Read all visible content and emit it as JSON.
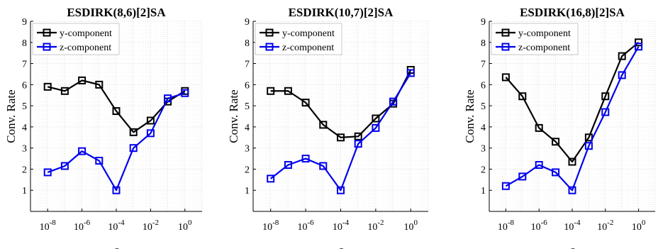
{
  "colors": {
    "y": "#000000",
    "z": "#0000ee",
    "grid": "#d9d9d9",
    "minor_grid": "#eeeeee"
  },
  "chart_data": [
    {
      "type": "line",
      "title": "ESDIRK(8,6)[2]SA",
      "xlabel": "ε",
      "ylabel": "Conv. Rate",
      "xscale": "log",
      "xlim": [
        1e-09,
        10.0
      ],
      "ylim": [
        0,
        9
      ],
      "xticks": [
        1e-08,
        1e-06,
        0.0001,
        0.01,
        1.0
      ],
      "xticklabels": [
        {
          "base": "10",
          "exp": "-8"
        },
        {
          "base": "10",
          "exp": "-6"
        },
        {
          "base": "10",
          "exp": "-4"
        },
        {
          "base": "10",
          "exp": "-2"
        },
        {
          "base": "10",
          "exp": "0"
        }
      ],
      "yticks": [
        1,
        2,
        3,
        4,
        5,
        6,
        7,
        8,
        9
      ],
      "grid": true,
      "legend_position": "top-left",
      "x": [
        1e-08,
        1e-07,
        1e-06,
        1e-05,
        0.0001,
        0.001,
        0.01,
        0.1,
        1.0
      ],
      "series": [
        {
          "name": "y-component",
          "values": [
            5.9,
            5.7,
            6.2,
            6.0,
            4.75,
            3.75,
            4.3,
            5.2,
            5.7
          ]
        },
        {
          "name": "z-component",
          "values": [
            1.85,
            2.15,
            2.85,
            2.4,
            1.0,
            3.0,
            3.7,
            5.35,
            5.6
          ]
        }
      ]
    },
    {
      "type": "line",
      "title": "ESDIRK(10,7)[2]SA",
      "xlabel": "ε",
      "ylabel": "Conv. Rate",
      "xscale": "log",
      "xlim": [
        1e-09,
        10.0
      ],
      "ylim": [
        0,
        9
      ],
      "xticks": [
        1e-08,
        1e-06,
        0.0001,
        0.01,
        1.0
      ],
      "xticklabels": [
        {
          "base": "10",
          "exp": "-8"
        },
        {
          "base": "10",
          "exp": "-6"
        },
        {
          "base": "10",
          "exp": "-4"
        },
        {
          "base": "10",
          "exp": "-2"
        },
        {
          "base": "10",
          "exp": "0"
        }
      ],
      "yticks": [
        1,
        2,
        3,
        4,
        5,
        6,
        7,
        8,
        9
      ],
      "grid": true,
      "legend_position": "top-left",
      "x": [
        1e-08,
        1e-07,
        1e-06,
        1e-05,
        0.0001,
        0.001,
        0.01,
        0.1,
        1.0
      ],
      "series": [
        {
          "name": "y-component",
          "values": [
            5.7,
            5.7,
            5.15,
            4.1,
            3.5,
            3.55,
            4.4,
            5.1,
            6.7
          ]
        },
        {
          "name": "z-component",
          "values": [
            1.55,
            2.2,
            2.5,
            2.15,
            1.0,
            3.2,
            3.95,
            5.2,
            6.55
          ]
        }
      ]
    },
    {
      "type": "line",
      "title": "ESDIRK(16,8)[2]SA",
      "xlabel": "ε",
      "ylabel": "Conv. Rate",
      "xscale": "log",
      "xlim": [
        1e-09,
        10.0
      ],
      "ylim": [
        0,
        9
      ],
      "xticks": [
        1e-08,
        1e-06,
        0.0001,
        0.01,
        1.0
      ],
      "xticklabels": [
        {
          "base": "10",
          "exp": "-8"
        },
        {
          "base": "10",
          "exp": "-6"
        },
        {
          "base": "10",
          "exp": "-4"
        },
        {
          "base": "10",
          "exp": "-2"
        },
        {
          "base": "10",
          "exp": "0"
        }
      ],
      "yticks": [
        1,
        2,
        3,
        4,
        5,
        6,
        7,
        8,
        9
      ],
      "grid": true,
      "legend_position": "top-left",
      "x": [
        1e-08,
        1e-07,
        1e-06,
        1e-05,
        0.0001,
        0.001,
        0.01,
        0.1,
        1.0
      ],
      "series": [
        {
          "name": "y-component",
          "values": [
            6.35,
            5.45,
            3.95,
            3.3,
            2.35,
            3.5,
            5.45,
            7.35,
            8.0
          ]
        },
        {
          "name": "z-component",
          "values": [
            1.2,
            1.65,
            2.2,
            1.85,
            1.0,
            3.1,
            4.7,
            6.45,
            7.8
          ]
        }
      ]
    }
  ]
}
